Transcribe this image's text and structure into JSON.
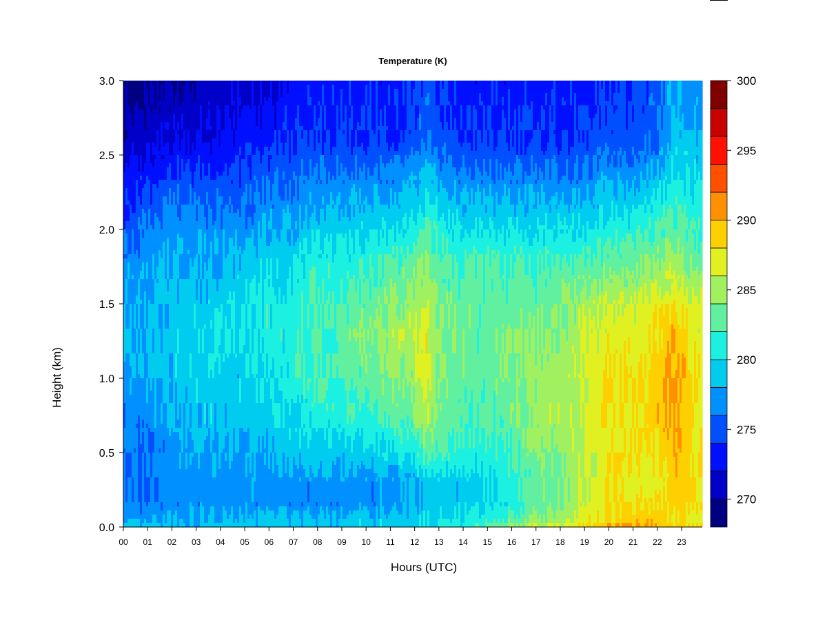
{
  "chart_data": {
    "type": "heatmap",
    "title": "Temperature (K)",
    "xlabel": "Hours (UTC)",
    "ylabel": "Height (km)",
    "x_ticks": [
      "00",
      "01",
      "02",
      "03",
      "04",
      "05",
      "06",
      "07",
      "08",
      "09",
      "10",
      "11",
      "12",
      "13",
      "14",
      "15",
      "16",
      "17",
      "18",
      "19",
      "20",
      "21",
      "22",
      "23"
    ],
    "y_ticks": [
      "0.0",
      "0.5",
      "1.0",
      "1.5",
      "2.0",
      "2.5",
      "3.0"
    ],
    "xlim": [
      0,
      23.85
    ],
    "ylim": [
      0,
      3.0
    ],
    "colorbar": {
      "ticks": [
        "270",
        "275",
        "280",
        "285",
        "290",
        "295",
        "300"
      ],
      "range": [
        268,
        300
      ],
      "step": 2,
      "levels": [
        {
          "value": 269,
          "color": "#000080"
        },
        {
          "value": 271,
          "color": "#0000c8"
        },
        {
          "value": 273,
          "color": "#0010ff"
        },
        {
          "value": 275,
          "color": "#0050ff"
        },
        {
          "value": 277,
          "color": "#0090ff"
        },
        {
          "value": 279,
          "color": "#00ccf0"
        },
        {
          "value": 281,
          "color": "#1cf0e0"
        },
        {
          "value": 283,
          "color": "#60f0a0"
        },
        {
          "value": 285,
          "color": "#a0f060"
        },
        {
          "value": 287,
          "color": "#e0f020"
        },
        {
          "value": 289,
          "color": "#ffd000"
        },
        {
          "value": 291,
          "color": "#ff9000"
        },
        {
          "value": 293,
          "color": "#ff5000"
        },
        {
          "value": 295,
          "color": "#ff1000"
        },
        {
          "value": 297,
          "color": "#c80000"
        },
        {
          "value": 299,
          "color": "#800000"
        }
      ]
    },
    "z_grid": {
      "note_x": "hour",
      "x": [
        0,
        1,
        2,
        3,
        4,
        5,
        6,
        7,
        8,
        9,
        10,
        11,
        12,
        12.5,
        13,
        14,
        15,
        16,
        17,
        18,
        19,
        20,
        21,
        22,
        22.7,
        23.5
      ],
      "y": [
        0.0,
        0.05,
        0.15,
        0.3,
        0.5,
        0.7,
        1.0,
        1.3,
        1.5,
        1.8,
        2.0,
        2.3,
        2.6,
        3.0
      ],
      "z": [
        [
          279,
          279,
          279,
          279,
          279,
          279,
          279,
          279,
          279,
          279,
          279,
          279,
          279,
          280,
          280,
          281,
          283,
          285,
          286,
          287,
          288,
          290,
          291,
          290,
          289,
          288
        ],
        [
          277,
          277,
          278,
          278,
          278,
          278,
          279,
          279,
          279,
          279,
          279,
          279,
          279,
          280,
          280,
          280,
          281,
          283,
          284,
          285,
          287,
          288,
          289,
          289,
          288,
          287
        ],
        [
          276,
          276,
          277,
          277,
          277,
          277,
          277,
          277,
          277,
          277,
          277,
          277,
          278,
          279,
          279,
          279,
          280,
          281,
          283,
          284,
          286,
          288,
          288,
          288,
          289,
          288
        ],
        [
          276,
          276,
          277,
          277,
          277,
          277,
          277,
          277,
          277,
          277,
          277,
          277,
          278,
          279,
          279,
          279,
          280,
          281,
          283,
          284,
          286,
          288,
          287,
          287,
          289,
          288
        ],
        [
          276,
          276,
          277,
          278,
          278,
          278,
          278,
          279,
          279,
          279,
          279,
          280,
          281,
          283,
          282,
          281,
          281,
          282,
          284,
          284,
          286,
          288,
          288,
          288,
          290,
          288
        ],
        [
          276,
          277,
          278,
          279,
          279,
          279,
          279,
          280,
          281,
          281,
          281,
          282,
          283,
          286,
          283,
          282,
          282,
          283,
          285,
          285,
          286,
          288,
          288,
          289,
          291,
          288
        ],
        [
          277,
          278,
          279,
          279,
          279,
          279,
          280,
          281,
          282,
          282,
          283,
          284,
          285,
          287,
          284,
          283,
          283,
          284,
          285,
          285,
          286,
          288,
          288,
          289,
          291,
          288
        ],
        [
          278,
          278,
          279,
          279,
          280,
          280,
          281,
          281,
          282,
          283,
          284,
          285,
          286,
          287,
          284,
          283,
          283,
          284,
          284,
          284,
          286,
          287,
          287,
          288,
          290,
          287
        ],
        [
          278,
          278,
          279,
          279,
          279,
          280,
          281,
          281,
          282,
          282,
          283,
          284,
          285,
          286,
          284,
          283,
          283,
          283,
          283,
          284,
          285,
          286,
          286,
          287,
          288,
          286
        ],
        [
          277,
          277,
          278,
          278,
          278,
          279,
          279,
          280,
          281,
          281,
          281,
          282,
          283,
          284,
          282,
          282,
          282,
          282,
          282,
          282,
          282,
          283,
          283,
          284,
          285,
          283
        ],
        [
          275,
          276,
          277,
          277,
          277,
          277,
          278,
          278,
          279,
          279,
          280,
          280,
          281,
          282,
          281,
          280,
          280,
          280,
          280,
          280,
          280,
          281,
          281,
          282,
          283,
          282
        ],
        [
          273,
          274,
          275,
          275,
          275,
          275,
          276,
          276,
          277,
          277,
          277,
          277,
          278,
          279,
          278,
          277,
          277,
          277,
          277,
          277,
          277,
          278,
          278,
          279,
          281,
          280
        ],
        [
          271,
          271,
          272,
          272,
          272,
          273,
          273,
          274,
          274,
          274,
          274,
          274,
          275,
          276,
          275,
          274,
          274,
          274,
          274,
          274,
          274,
          275,
          275,
          276,
          279,
          278
        ],
        [
          269,
          269,
          270,
          270,
          271,
          272,
          272,
          273,
          273,
          273,
          273,
          273,
          274,
          275,
          274,
          273,
          273,
          273,
          273,
          273,
          273,
          274,
          274,
          275,
          278,
          277
        ]
      ]
    },
    "grid": false,
    "legend": "colorbar-right"
  }
}
